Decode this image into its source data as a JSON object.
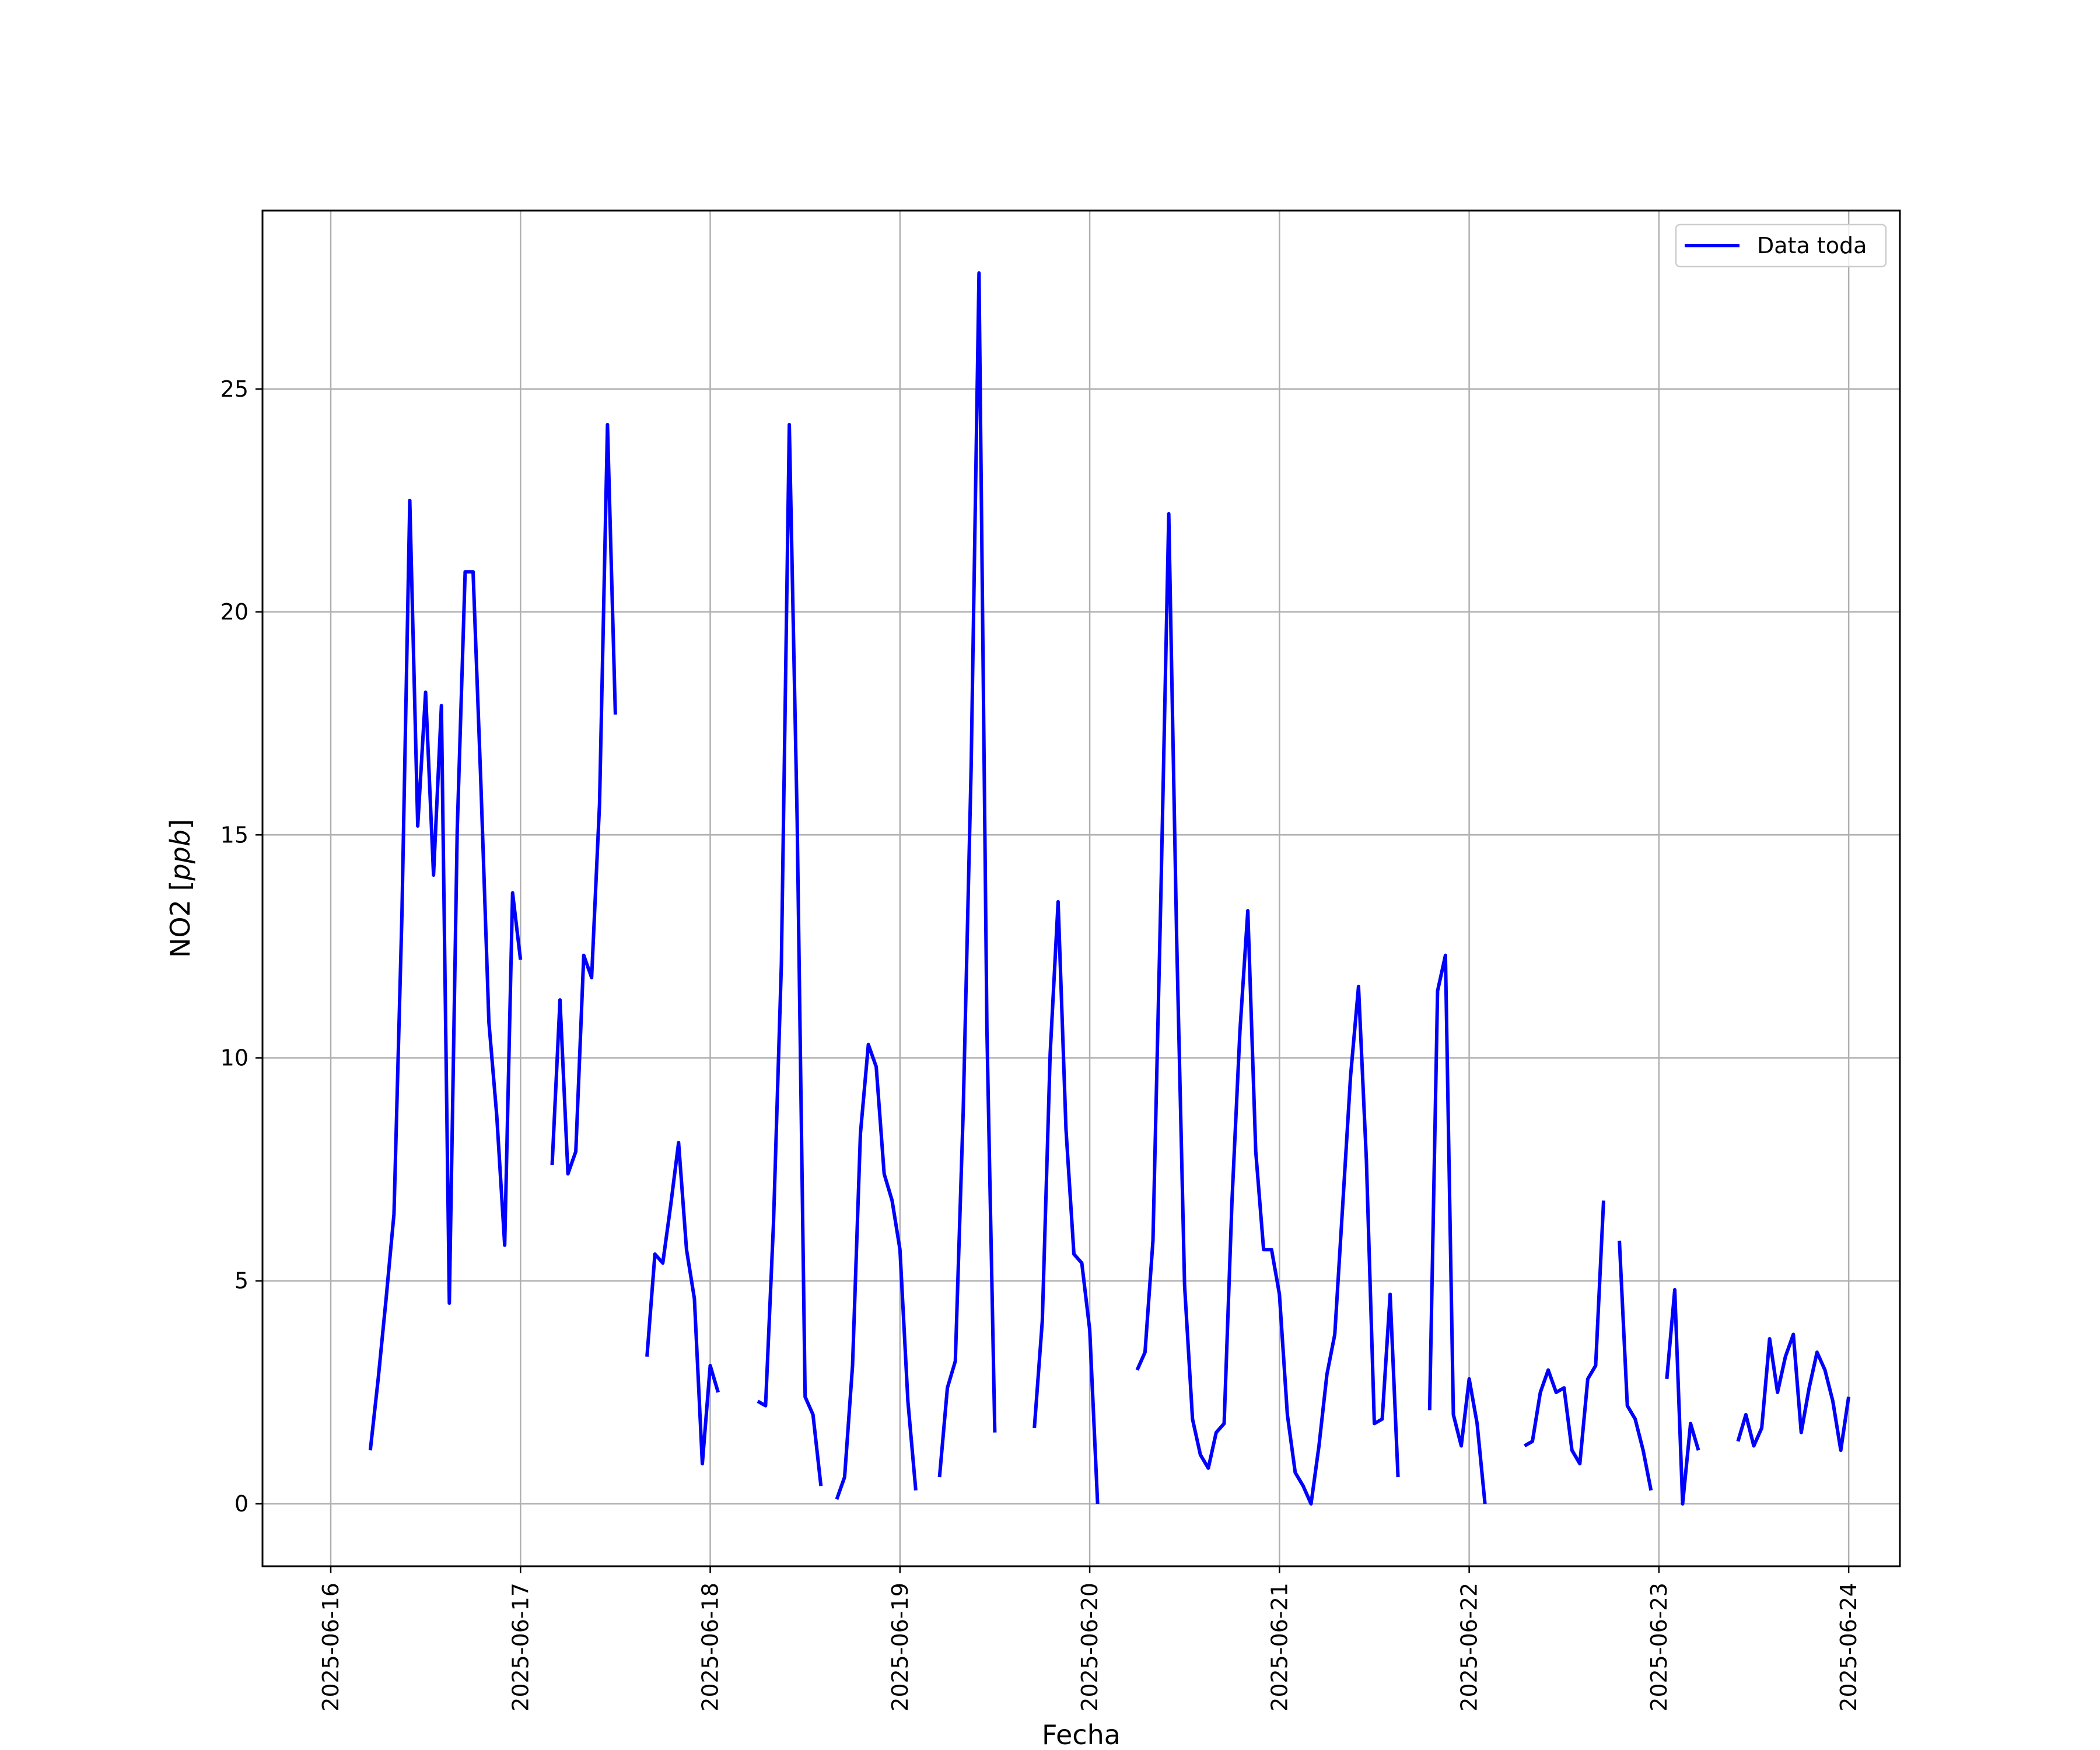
{
  "chart_data": {
    "type": "line",
    "title": "",
    "xlabel": "Fecha",
    "ylabel_prefix": "NO2 [",
    "ylabel_unit": "ppb",
    "ylabel_suffix": "]",
    "xlim": [
      "2025-06-15T15:22",
      "2025-06-24T06:29"
    ],
    "ylim": [
      -1.4,
      29.0
    ],
    "x_ticks": [
      "2025-06-16",
      "2025-06-17",
      "2025-06-18",
      "2025-06-19",
      "2025-06-20",
      "2025-06-21",
      "2025-06-22",
      "2025-06-23",
      "2025-06-24"
    ],
    "y_ticks": [
      0,
      5,
      10,
      15,
      20,
      25
    ],
    "grid": true,
    "legend_position": "top-right",
    "series": [
      {
        "name": "Data toda",
        "color": "#0000ff",
        "segments": [
          [
            [
              "2025-06-16T05:00",
              1.2
            ],
            [
              "2025-06-16T06:00",
              2.8
            ],
            [
              "2025-06-16T07:00",
              4.6
            ],
            [
              "2025-06-16T08:00",
              6.5
            ],
            [
              "2025-06-16T09:00",
              13.2
            ],
            [
              "2025-06-16T10:00",
              22.5
            ],
            [
              "2025-06-16T11:00",
              15.2
            ],
            [
              "2025-06-16T12:00",
              18.2
            ],
            [
              "2025-06-16T13:00",
              14.1
            ],
            [
              "2025-06-16T14:00",
              17.9
            ],
            [
              "2025-06-16T15:00",
              4.5
            ],
            [
              "2025-06-16T16:00",
              15.1
            ],
            [
              "2025-06-16T17:00",
              20.9
            ],
            [
              "2025-06-16T18:00",
              20.9
            ],
            [
              "2025-06-16T19:00",
              16.1
            ],
            [
              "2025-06-16T20:00",
              10.8
            ],
            [
              "2025-06-16T21:00",
              8.7
            ],
            [
              "2025-06-16T22:00",
              5.8
            ],
            [
              "2025-06-16T23:00",
              13.7
            ],
            [
              "2025-06-17T00:00",
              12.2
            ]
          ],
          [
            [
              "2025-06-17T04:00",
              7.6
            ],
            [
              "2025-06-17T05:00",
              11.3
            ],
            [
              "2025-06-17T06:00",
              7.4
            ],
            [
              "2025-06-17T07:00",
              7.9
            ],
            [
              "2025-06-17T08:00",
              12.3
            ],
            [
              "2025-06-17T09:00",
              11.8
            ],
            [
              "2025-06-17T10:00",
              15.7
            ],
            [
              "2025-06-17T11:00",
              24.2
            ],
            [
              "2025-06-17T12:00",
              17.7
            ]
          ],
          [
            [
              "2025-06-17T16:00",
              3.3
            ],
            [
              "2025-06-17T17:00",
              5.6
            ],
            [
              "2025-06-17T18:00",
              5.4
            ],
            [
              "2025-06-17T19:00",
              6.7
            ],
            [
              "2025-06-17T20:00",
              8.1
            ],
            [
              "2025-06-17T21:00",
              5.7
            ],
            [
              "2025-06-17T22:00",
              4.6
            ],
            [
              "2025-06-17T23:00",
              0.9
            ],
            [
              "2025-06-18T00:00",
              3.1
            ],
            [
              "2025-06-18T01:00",
              2.5
            ]
          ],
          [
            [
              "2025-06-18T06:00",
              2.3
            ],
            [
              "2025-06-18T07:00",
              2.2
            ],
            [
              "2025-06-18T08:00",
              6.3
            ],
            [
              "2025-06-18T09:00",
              12.1
            ],
            [
              "2025-06-18T10:00",
              24.2
            ],
            [
              "2025-06-18T11:00",
              15.3
            ],
            [
              "2025-06-18T12:00",
              2.4
            ],
            [
              "2025-06-18T13:00",
              2.0
            ],
            [
              "2025-06-18T14:00",
              0.4
            ]
          ],
          [
            [
              "2025-06-18T16:00",
              0.1
            ],
            [
              "2025-06-18T17:00",
              0.6
            ],
            [
              "2025-06-18T18:00",
              3.1
            ],
            [
              "2025-06-18T19:00",
              8.3
            ],
            [
              "2025-06-18T20:00",
              10.3
            ],
            [
              "2025-06-18T21:00",
              9.8
            ],
            [
              "2025-06-18T22:00",
              7.4
            ],
            [
              "2025-06-18T23:00",
              6.8
            ],
            [
              "2025-06-19T00:00",
              5.7
            ],
            [
              "2025-06-19T01:00",
              2.3
            ],
            [
              "2025-06-19T02:00",
              0.3
            ]
          ],
          [
            [
              "2025-06-19T05:00",
              0.6
            ],
            [
              "2025-06-19T06:00",
              2.6
            ],
            [
              "2025-06-19T07:00",
              3.2
            ],
            [
              "2025-06-19T08:00",
              8.8
            ],
            [
              "2025-06-19T09:00",
              16.5
            ],
            [
              "2025-06-19T10:00",
              27.6
            ],
            [
              "2025-06-19T11:00",
              10.6
            ],
            [
              "2025-06-19T12:00",
              1.6
            ]
          ],
          [
            [
              "2025-06-19T17:00",
              1.7
            ],
            [
              "2025-06-19T18:00",
              4.1
            ],
            [
              "2025-06-19T19:00",
              10.1
            ],
            [
              "2025-06-19T20:00",
              13.5
            ],
            [
              "2025-06-19T21:00",
              8.4
            ],
            [
              "2025-06-19T22:00",
              5.6
            ],
            [
              "2025-06-19T23:00",
              5.4
            ],
            [
              "2025-06-20T00:00",
              3.9
            ],
            [
              "2025-06-20T01:00",
              0.0
            ]
          ],
          [
            [
              "2025-06-20T06:00",
              3.0
            ],
            [
              "2025-06-20T07:00",
              3.4
            ],
            [
              "2025-06-20T08:00",
              5.9
            ],
            [
              "2025-06-20T09:00",
              13.6
            ],
            [
              "2025-06-20T10:00",
              22.2
            ],
            [
              "2025-06-20T11:00",
              12.7
            ],
            [
              "2025-06-20T12:00",
              4.9
            ],
            [
              "2025-06-20T13:00",
              1.9
            ],
            [
              "2025-06-20T14:00",
              1.1
            ],
            [
              "2025-06-20T15:00",
              0.8
            ],
            [
              "2025-06-20T16:00",
              1.6
            ],
            [
              "2025-06-20T17:00",
              1.8
            ],
            [
              "2025-06-20T18:00",
              6.8
            ],
            [
              "2025-06-20T19:00",
              10.6
            ],
            [
              "2025-06-20T20:00",
              13.3
            ],
            [
              "2025-06-20T21:00",
              7.9
            ],
            [
              "2025-06-20T22:00",
              5.7
            ],
            [
              "2025-06-20T23:00",
              5.7
            ],
            [
              "2025-06-21T00:00",
              4.7
            ],
            [
              "2025-06-21T01:00",
              2.0
            ],
            [
              "2025-06-21T02:00",
              0.7
            ],
            [
              "2025-06-21T03:00",
              0.4
            ],
            [
              "2025-06-21T04:00",
              0.0
            ],
            [
              "2025-06-21T05:00",
              1.3
            ],
            [
              "2025-06-21T06:00",
              2.9
            ],
            [
              "2025-06-21T07:00",
              3.8
            ],
            [
              "2025-06-21T08:00",
              6.7
            ],
            [
              "2025-06-21T09:00",
              9.6
            ],
            [
              "2025-06-21T10:00",
              11.6
            ],
            [
              "2025-06-21T11:00",
              7.7
            ],
            [
              "2025-06-21T12:00",
              1.8
            ],
            [
              "2025-06-21T13:00",
              1.9
            ],
            [
              "2025-06-21T14:00",
              4.7
            ],
            [
              "2025-06-21T15:00",
              0.6
            ]
          ],
          [
            [
              "2025-06-21T19:00",
              2.1
            ],
            [
              "2025-06-21T20:00",
              11.5
            ],
            [
              "2025-06-21T21:00",
              12.3
            ],
            [
              "2025-06-21T22:00",
              2.0
            ],
            [
              "2025-06-21T23:00",
              1.3
            ],
            [
              "2025-06-22T00:00",
              2.8
            ],
            [
              "2025-06-22T01:00",
              1.8
            ],
            [
              "2025-06-22T02:00",
              0.0
            ]
          ],
          [
            [
              "2025-06-22T07:00",
              1.3
            ],
            [
              "2025-06-22T08:00",
              1.4
            ],
            [
              "2025-06-22T09:00",
              2.5
            ],
            [
              "2025-06-22T10:00",
              3.0
            ],
            [
              "2025-06-22T11:00",
              2.5
            ],
            [
              "2025-06-22T12:00",
              2.6
            ],
            [
              "2025-06-22T13:00",
              1.2
            ],
            [
              "2025-06-22T14:00",
              0.9
            ],
            [
              "2025-06-22T15:00",
              2.8
            ],
            [
              "2025-06-22T16:00",
              3.1
            ],
            [
              "2025-06-22T17:00",
              6.8
            ]
          ],
          [
            [
              "2025-06-22T19:00",
              5.9
            ],
            [
              "2025-06-22T20:00",
              2.2
            ],
            [
              "2025-06-22T21:00",
              1.9
            ],
            [
              "2025-06-22T22:00",
              1.2
            ],
            [
              "2025-06-22T23:00",
              0.3
            ]
          ],
          [
            [
              "2025-06-23T01:00",
              2.8
            ],
            [
              "2025-06-23T02:00",
              4.8
            ],
            [
              "2025-06-23T03:00",
              0.0
            ],
            [
              "2025-06-23T04:00",
              1.8
            ],
            [
              "2025-06-23T05:00",
              1.2
            ]
          ],
          [
            [
              "2025-06-23T10:00",
              1.4
            ],
            [
              "2025-06-23T11:00",
              2.0
            ],
            [
              "2025-06-23T12:00",
              1.3
            ],
            [
              "2025-06-23T13:00",
              1.7
            ],
            [
              "2025-06-23T14:00",
              3.7
            ],
            [
              "2025-06-23T15:00",
              2.5
            ],
            [
              "2025-06-23T16:00",
              3.3
            ],
            [
              "2025-06-23T17:00",
              3.8
            ],
            [
              "2025-06-23T18:00",
              1.6
            ],
            [
              "2025-06-23T19:00",
              2.6
            ],
            [
              "2025-06-23T20:00",
              3.4
            ],
            [
              "2025-06-23T21:00",
              3.0
            ],
            [
              "2025-06-23T22:00",
              2.3
            ],
            [
              "2025-06-23T23:00",
              1.2
            ],
            [
              "2025-06-24T00:00",
              2.4
            ]
          ]
        ]
      }
    ]
  }
}
